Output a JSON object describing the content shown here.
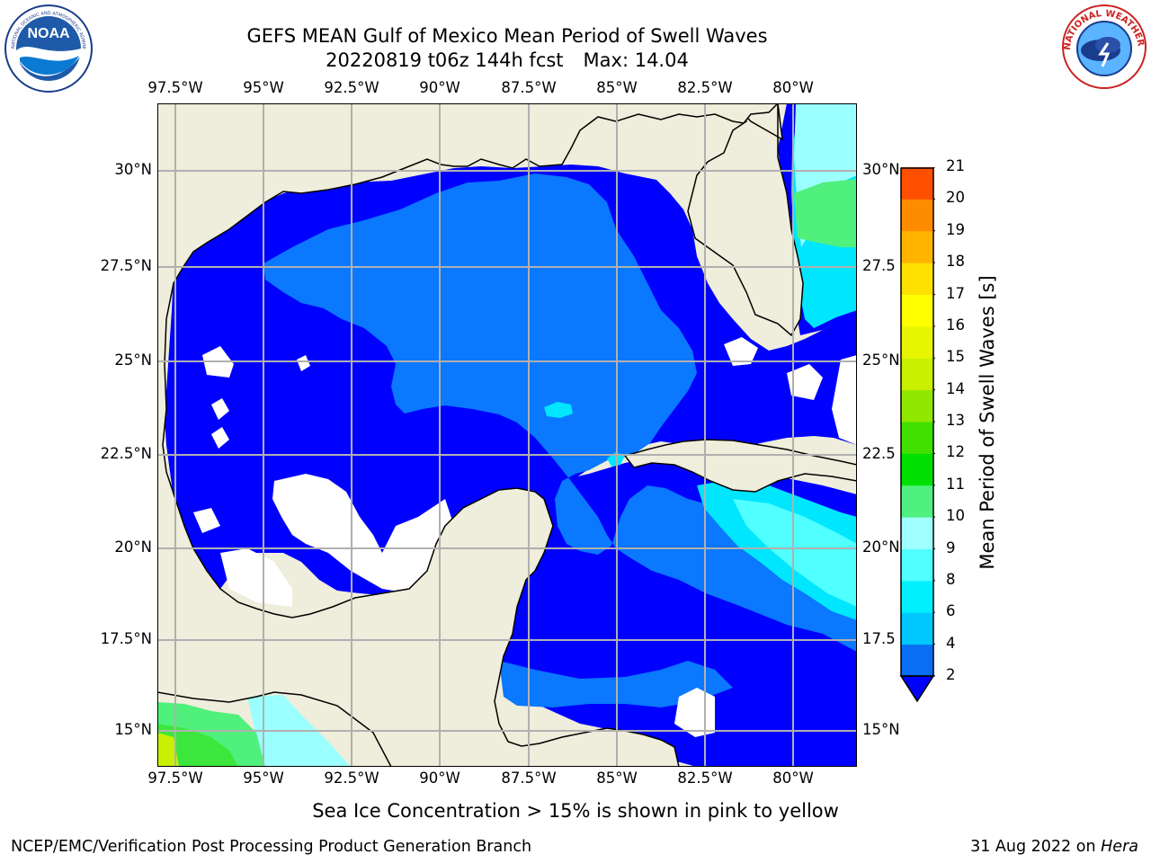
{
  "title_line1": "GEFS MEAN Gulf of Mexico Mean Period of Swell Waves",
  "run_label": "20220819 t06z 144h fcst",
  "max_label": "Max: 14.04",
  "lon_ticks": [
    "97.5°W",
    "95°W",
    "92.5°W",
    "90°W",
    "87.5°W",
    "85°W",
    "82.5°W",
    "80°W"
  ],
  "lat_ticks_left": [
    "30°N",
    "27.5°N",
    "25°N",
    "22.5°N",
    "20°N",
    "17.5°N",
    "15°N"
  ],
  "lat_ticks_right": [
    "30°N",
    "27.5",
    "25°N",
    "22.5",
    "20°N",
    "17.5",
    "15°N"
  ],
  "colorbar": {
    "label": "Mean Period of Swell Waves [s]",
    "ticks": [
      "2",
      "4",
      "6",
      "8",
      "9",
      "10",
      "11",
      "12",
      "13",
      "14",
      "15",
      "16",
      "17",
      "18",
      "19",
      "20",
      "21"
    ],
    "colors": [
      "#0a6ef5",
      "#00c8ff",
      "#00f0ff",
      "#50ffff",
      "#a0ffff",
      "#50f080",
      "#00e000",
      "#40e000",
      "#90e800",
      "#c8f000",
      "#e8f500",
      "#ffff00",
      "#ffe000",
      "#ffb400",
      "#ff8c00",
      "#ff5000",
      "#ff2800",
      "#ff0000"
    ],
    "under_color": "#0000ff"
  },
  "colors": {
    "land": "#efeddb",
    "level_0_2": "#0000ff",
    "level_2_4": "#0a78ff",
    "level_4_6": "#00e6ff",
    "level_6_8": "#50ffff",
    "level_8_9": "#9cffff",
    "level_9_10": "#50f07c",
    "level_10_12": "#3ce63c",
    "level_12_14": "#c8f000"
  },
  "footnote": "Sea Ice Concentration > 15% is shown in pink to yellow",
  "credit": "NCEP/EMC/Verification Post Processing Product Generation Branch",
  "date_label": "31 Aug 2022 on",
  "machine": "Hera",
  "logos": {
    "left": "NOAA",
    "left_ring": "NATIONAL OCEANIC AND ATMOSPHERIC ADMINISTRATION · U.S. DEPARTMENT OF COMMERCE",
    "right_ring": "NATIONAL WEATHER SERVICE"
  }
}
